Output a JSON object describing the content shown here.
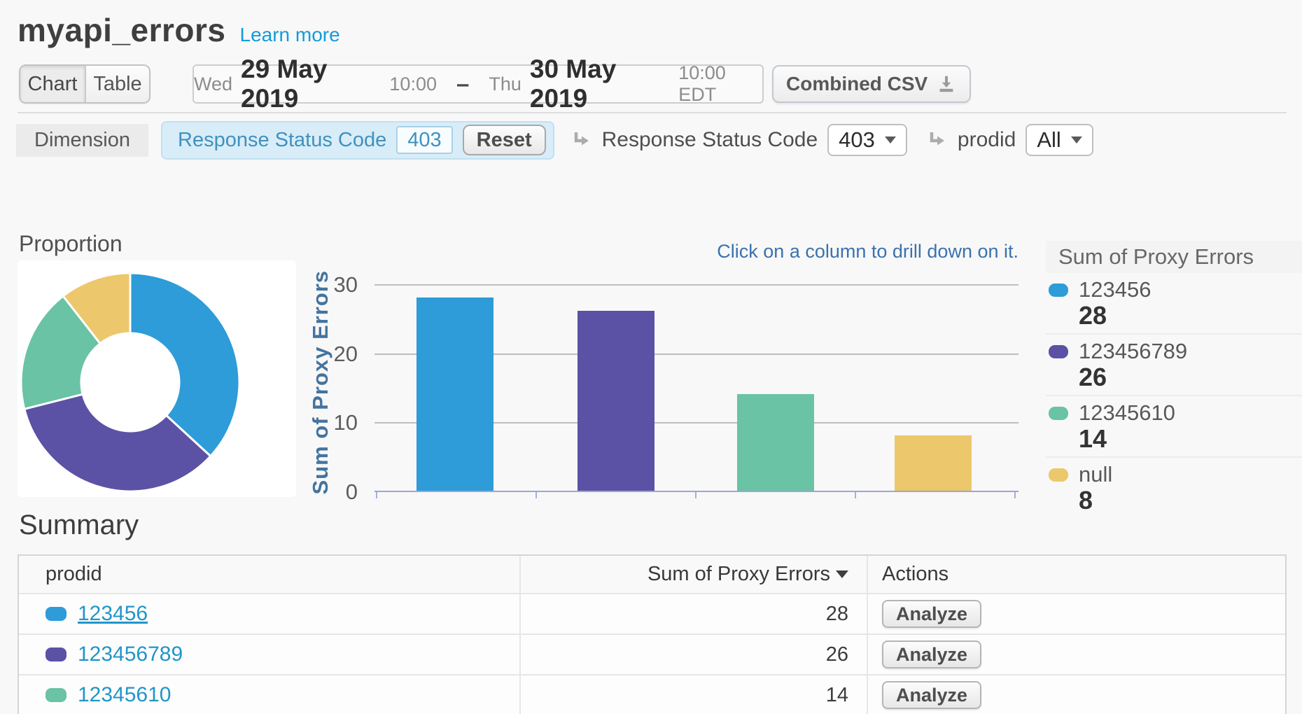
{
  "header": {
    "title": "myapi_errors",
    "learn_more": "Learn more"
  },
  "toolbar": {
    "chart_tab": "Chart",
    "table_tab": "Table",
    "date_range": {
      "start_dow": "Wed",
      "start_date": "29 May 2019",
      "start_time": "10:00",
      "separator": "–",
      "end_dow": "Thu",
      "end_date": "30 May 2019",
      "end_time": "10:00 EDT"
    },
    "csv_button": "Combined CSV"
  },
  "filter_bar": {
    "dimension_label": "Dimension",
    "active_filter": {
      "name": "Response Status Code",
      "value": "403"
    },
    "reset_button": "Reset",
    "drilldowns": [
      {
        "label": "Response Status Code",
        "value": "403"
      },
      {
        "label": "prodid",
        "value": "All"
      }
    ]
  },
  "proportion_title": "Proportion",
  "hint": "Click on a column to drill down on it.",
  "chart_data": [
    {
      "type": "pie",
      "donut": true,
      "title": "Proportion",
      "labels": [
        "123456",
        "123456789",
        "12345610",
        "null"
      ],
      "values": [
        28,
        26,
        14,
        8
      ],
      "colors": [
        "#2D9CD8",
        "#5B52A5",
        "#69C3A4",
        "#EDC76B"
      ]
    },
    {
      "type": "bar",
      "categories": [
        "123456",
        "123456789",
        "12345610",
        "null"
      ],
      "values": [
        28,
        26,
        14,
        8
      ],
      "colors": [
        "#2D9CD8",
        "#5B52A5",
        "#69C3A4",
        "#EDC76B"
      ],
      "xlabel": "",
      "ylabel": "Sum of Proxy Errors",
      "yticks": [
        0,
        10,
        20,
        30
      ],
      "ylim": [
        0,
        30
      ],
      "grid": true,
      "legend_position": "right"
    }
  ],
  "legend": {
    "title": "Sum of Proxy Errors",
    "entries": [
      {
        "label": "123456",
        "value": 28,
        "color": "#2D9CD8"
      },
      {
        "label": "123456789",
        "value": 26,
        "color": "#5B52A5"
      },
      {
        "label": "12345610",
        "value": 14,
        "color": "#69C3A4"
      },
      {
        "label": "null",
        "value": 8,
        "color": "#EDC76B"
      }
    ]
  },
  "summary": {
    "title": "Summary",
    "columns": [
      "prodid",
      "Sum of Proxy Errors",
      "Actions"
    ],
    "action_label": "Analyze",
    "rows": [
      {
        "prodid": "123456",
        "value": 28,
        "color": "#2D9CD8",
        "underlined": true
      },
      {
        "prodid": "123456789",
        "value": 26,
        "color": "#5B52A5",
        "underlined": false
      },
      {
        "prodid": "12345610",
        "value": 14,
        "color": "#69C3A4",
        "underlined": false
      }
    ]
  }
}
